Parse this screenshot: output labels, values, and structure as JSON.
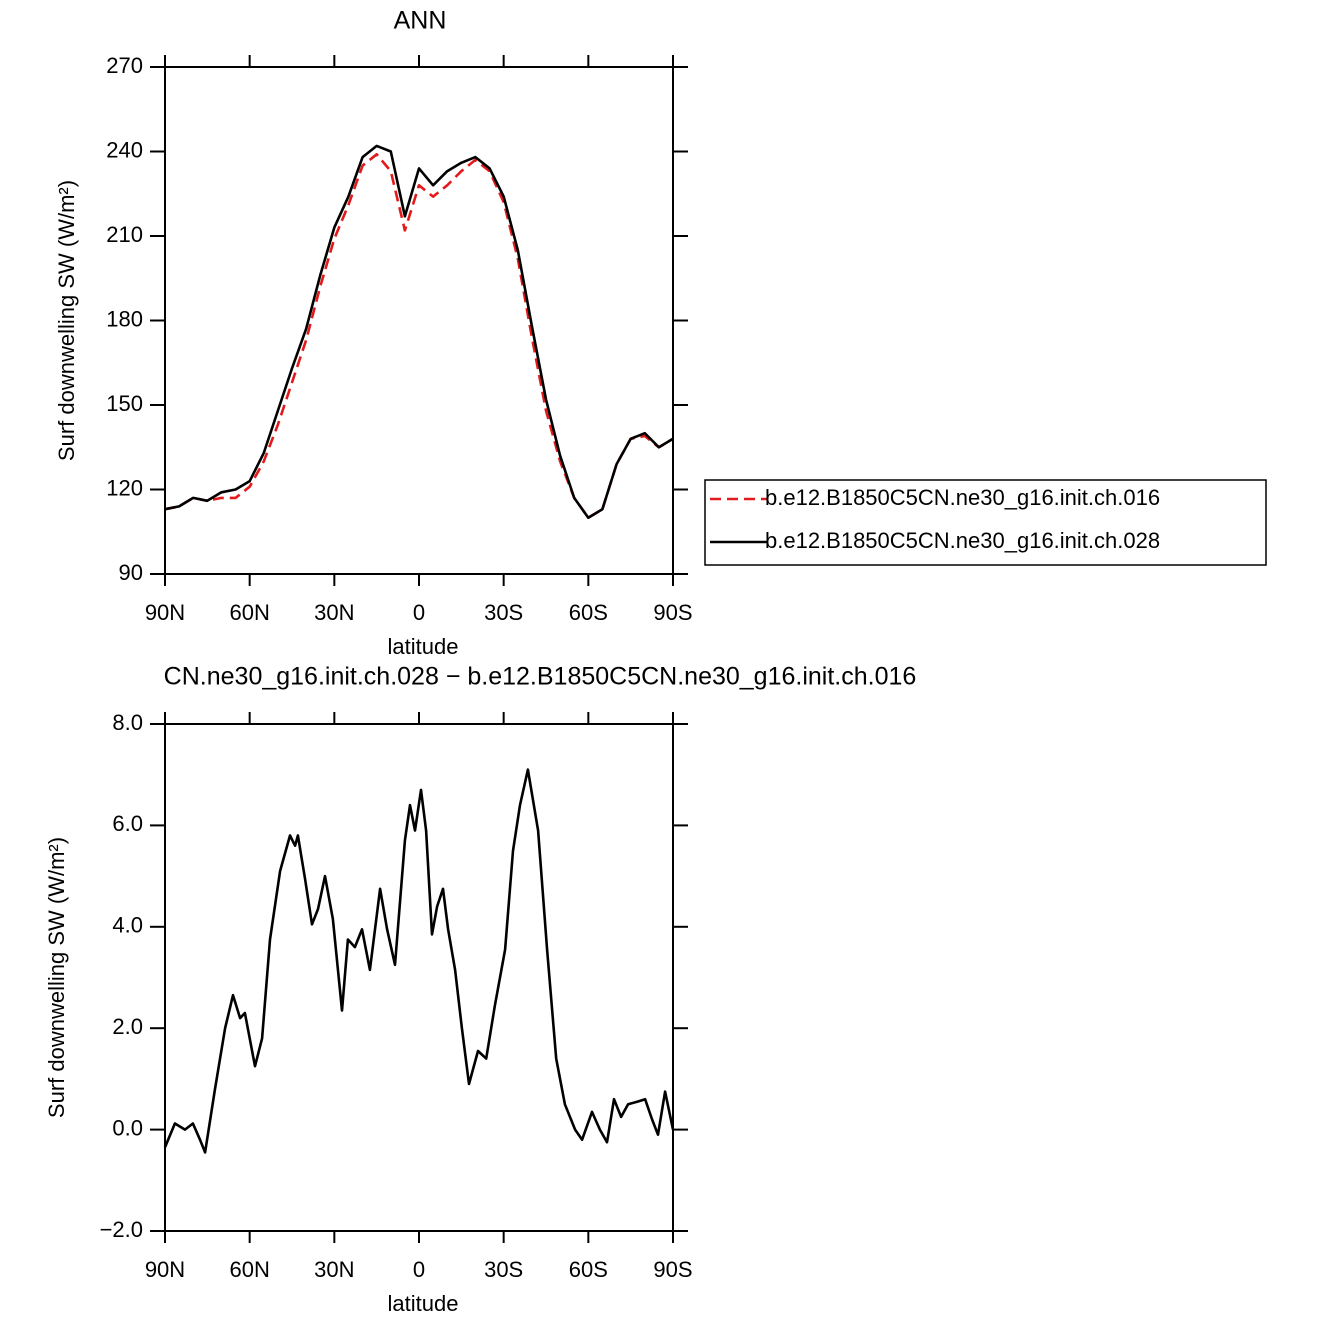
{
  "chart_data": [
    {
      "type": "line",
      "title": "ANN",
      "xlabel": "latitude",
      "ylabel": "Surf downwelling SW (W/m²)",
      "x": [
        90,
        85,
        80,
        75,
        70,
        65,
        60,
        55,
        50,
        45,
        40,
        35,
        30,
        25,
        20,
        15,
        10,
        5,
        0,
        -5,
        -10,
        -15,
        -20,
        -25,
        -30,
        -35,
        -40,
        -45,
        -50,
        -55,
        -60,
        -65,
        -70,
        -75,
        -80,
        -85,
        -90
      ],
      "xlim": [
        90,
        -90
      ],
      "xticks": [
        {
          "value": 90,
          "label": "90N"
        },
        {
          "value": 60,
          "label": "60N"
        },
        {
          "value": 30,
          "label": "30N"
        },
        0,
        {
          "value": -30,
          "label": "30S"
        },
        {
          "value": -60,
          "label": "60S"
        },
        {
          "value": -90,
          "label": "90S"
        }
      ],
      "ylim": [
        90,
        270
      ],
      "yticks": [
        90,
        120,
        150,
        180,
        210,
        240,
        270
      ],
      "legend": "right",
      "series": [
        {
          "name": "b.e12.B1850C5CN.ne30_g16.init.ch.016",
          "color": "#e31a1c",
          "dash": true,
          "values": [
            113,
            114,
            117,
            116,
            117,
            117,
            121,
            130,
            143,
            158,
            173,
            192,
            209,
            221,
            235,
            239,
            233,
            212,
            228,
            224,
            228,
            233,
            237,
            233,
            222,
            202,
            174,
            148,
            130,
            117,
            110,
            113,
            129,
            138,
            139,
            135,
            138
          ]
        },
        {
          "name": "b.e12.B1850C5CN.ne30_g16.init.ch.028",
          "color": "#000000",
          "dash": false,
          "values": [
            113,
            114,
            117,
            116,
            119,
            120,
            123,
            133,
            148,
            163,
            177,
            196,
            213,
            224,
            238,
            242,
            240,
            217,
            234,
            228,
            233,
            236,
            238,
            234,
            224,
            205,
            178,
            152,
            132,
            117,
            110,
            113,
            129,
            138,
            140,
            135,
            138
          ]
        }
      ]
    },
    {
      "type": "line",
      "title": "CN.ne30_g16.init.ch.028 − b.e12.B1850C5CN.ne30_g16.init.ch.016",
      "xlabel": "latitude",
      "ylabel": "Surf downwelling SW (W/m²)",
      "x": [
        90,
        86.5,
        82.9,
        80.1,
        77.6,
        75.8,
        72.3,
        68.7,
        65.9,
        63.4,
        61.7,
        58.1,
        55.6,
        52.8,
        49.2,
        45.7,
        43.9,
        42.9,
        40.4,
        37.9,
        35.8,
        33.3,
        30.5,
        27.3,
        25.2,
        22.7,
        20.2,
        17.4,
        13.8,
        11.3,
        8.5,
        5.0,
        3.2,
        1.4,
        -0.7,
        -2.5,
        -4.6,
        -6.4,
        -8.5,
        -10.3,
        -12.8,
        -15.2,
        -17.7,
        -20.9,
        -23.8,
        -26.9,
        -30.5,
        -33.3,
        -35.8,
        -38.6,
        -42.2,
        -45.4,
        -48.6,
        -51.7,
        -55.3,
        -57.8,
        -61.3,
        -64.1,
        -66.6,
        -69.1,
        -71.6,
        -74.1,
        -77.3,
        -80.1,
        -82.6,
        -84.7,
        -87.2,
        -90
      ],
      "xlim": [
        90,
        -90
      ],
      "xticks": [
        {
          "value": 90,
          "label": "90N"
        },
        {
          "value": 60,
          "label": "60N"
        },
        {
          "value": 30,
          "label": "30N"
        },
        0,
        {
          "value": -30,
          "label": "30S"
        },
        {
          "value": -60,
          "label": "60S"
        },
        {
          "value": -90,
          "label": "90S"
        }
      ],
      "ylim": [
        -2,
        8
      ],
      "yticks": [
        {
          "value": -2,
          "label": "−2.0"
        },
        {
          "value": 0,
          "label": "0.0"
        },
        {
          "value": 2,
          "label": "2.0"
        },
        {
          "value": 4,
          "label": "4.0"
        },
        {
          "value": 6,
          "label": "6.0"
        },
        {
          "value": 8,
          "label": "8.0"
        }
      ],
      "series": [
        {
          "color": "#000000",
          "dash": false,
          "values": [
            -0.35,
            0.12,
            0,
            0.12,
            -0.2,
            -0.45,
            0.8,
            2.0,
            2.65,
            2.2,
            2.3,
            1.25,
            1.8,
            3.75,
            5.1,
            5.8,
            5.6,
            5.8,
            4.95,
            4.05,
            4.35,
            5.0,
            4.15,
            2.35,
            3.75,
            3.6,
            3.95,
            3.15,
            4.75,
            3.95,
            3.25,
            5.7,
            6.4,
            5.9,
            6.7,
            5.9,
            3.85,
            4.4,
            4.75,
            3.95,
            3.15,
            2.0,
            0.9,
            1.55,
            1.4,
            2.45,
            3.55,
            5.5,
            6.4,
            7.1,
            5.9,
            3.55,
            1.4,
            0.5,
            0,
            -0.2,
            0.35,
            0,
            -0.25,
            0.6,
            0.25,
            0.5,
            0.55,
            0.6,
            0.2,
            -0.1,
            0.75,
            0
          ]
        }
      ]
    }
  ]
}
